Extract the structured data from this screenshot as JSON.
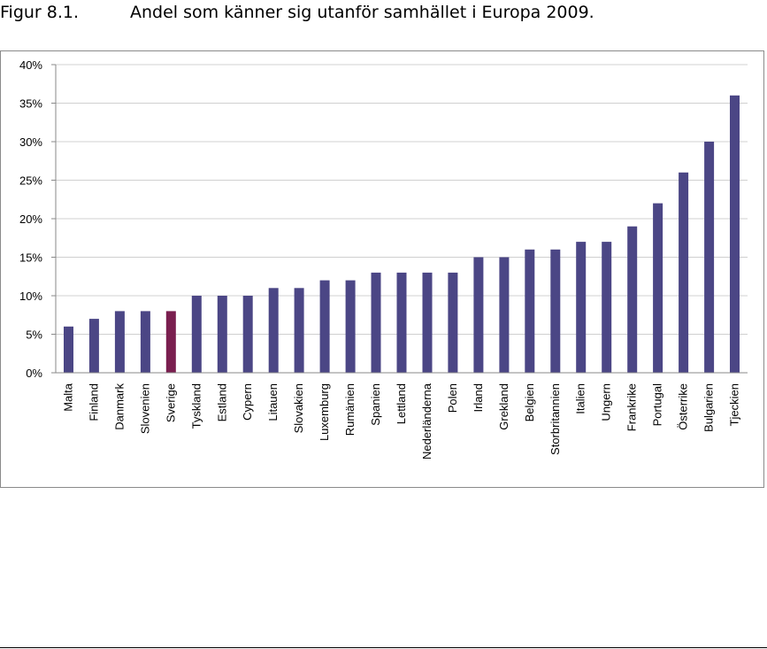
{
  "figure": {
    "number": "Figur 8.1.",
    "title": "Andel som känner sig utanför samhället i Europa 2009."
  },
  "colors": {
    "bar": "#4b4685",
    "highlight": "#7a1f4f",
    "grid": "#d0d0d0",
    "axis": "#8a8a8a"
  },
  "chart_data": {
    "type": "bar",
    "title": "Andel som känner sig utanför samhället i Europa 2009.",
    "xlabel": "",
    "ylabel": "",
    "ylim": [
      0,
      40
    ],
    "yticks": [
      0,
      5,
      10,
      15,
      20,
      25,
      30,
      35,
      40
    ],
    "ytick_labels": [
      "0%",
      "5%",
      "10%",
      "15%",
      "20%",
      "25%",
      "30%",
      "35%",
      "40%"
    ],
    "grid": true,
    "highlight_category": "Sverige",
    "categories": [
      "Malta",
      "Finland",
      "Danmark",
      "Slovenien",
      "Sverige",
      "Tyskland",
      "Estland",
      "Cypern",
      "Litauen",
      "Slovakien",
      "Luxemburg",
      "Rumänien",
      "Spanien",
      "Lettland",
      "Nederländerna",
      "Polen",
      "Irland",
      "Grekland",
      "Belgien",
      "Storbritannien",
      "Italien",
      "Ungern",
      "Frankrike",
      "Portugal",
      "Österrike",
      "Bulgarien",
      "Tjeckien"
    ],
    "values": [
      6,
      7,
      8,
      8,
      8,
      10,
      10,
      10,
      11,
      11,
      12,
      12,
      13,
      13,
      13,
      13,
      15,
      15,
      16,
      16,
      17,
      17,
      19,
      22,
      26,
      30,
      36
    ]
  }
}
